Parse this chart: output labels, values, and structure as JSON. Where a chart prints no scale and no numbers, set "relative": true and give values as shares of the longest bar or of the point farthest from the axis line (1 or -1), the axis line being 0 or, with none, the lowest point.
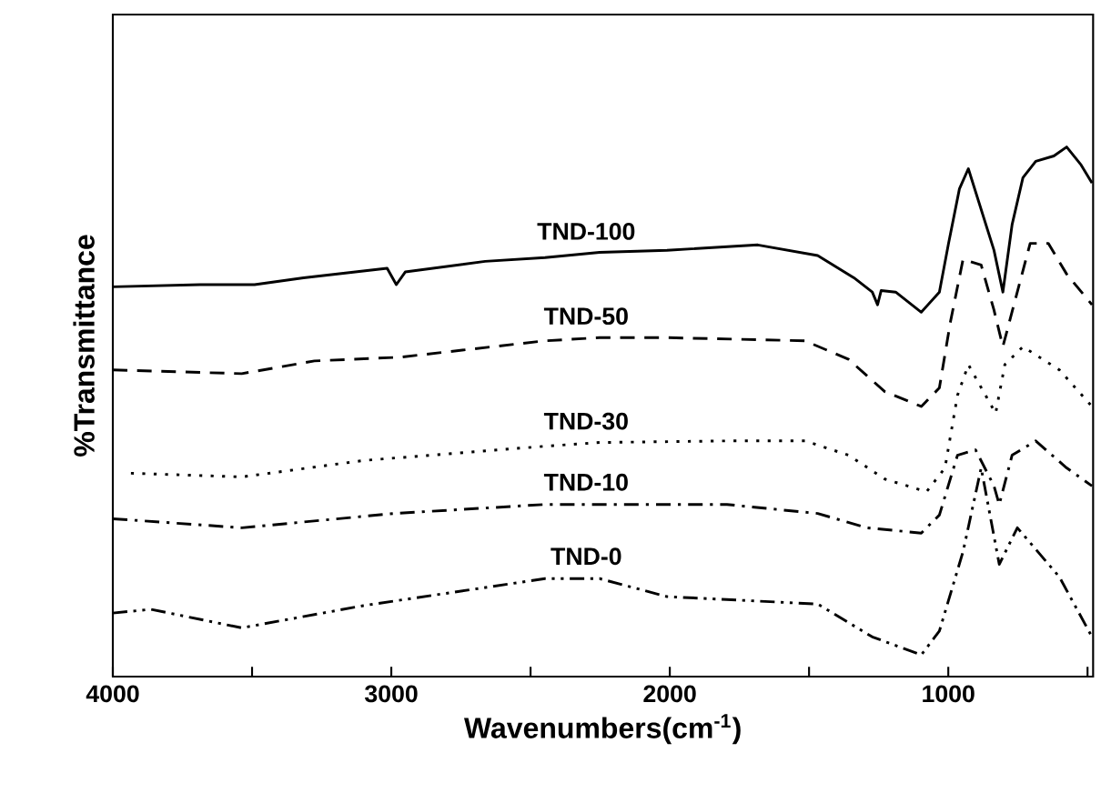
{
  "chart_data": {
    "type": "line",
    "relative": true,
    "xlabel": "Wavenumbers(cm$^{-1}$)",
    "ylabel": "%Transmittance",
    "xlim": [
      4000,
      480
    ],
    "xticks": [
      4000,
      {
        "value": 3500,
        "label": null
      },
      3000,
      {
        "value": 2500,
        "label": null
      },
      2000,
      {
        "value": 1500,
        "label": null
      },
      1000,
      {
        "value": 500,
        "label": null
      }
    ],
    "tick_labels": "x",
    "grid": false,
    "legend": false,
    "marker": "none",
    "series": [
      {
        "name": "TND-100",
        "color": "#000000",
        "line_style": "solid",
        "x": [
          4000,
          3687,
          3491,
          3315,
          3015,
          2982,
          2950,
          2663,
          2448,
          2252,
          2010,
          1684,
          1469,
          1339,
          1273,
          1254,
          1241,
          1189,
          1097,
          1032,
          999,
          960,
          928,
          836,
          804,
          771,
          732,
          686,
          621,
          575,
          523,
          484
        ],
        "values": [
          0.736,
          0.74,
          0.74,
          0.753,
          0.771,
          0.74,
          0.764,
          0.784,
          0.791,
          0.801,
          0.805,
          0.815,
          0.795,
          0.753,
          0.726,
          0.702,
          0.729,
          0.726,
          0.688,
          0.726,
          0.818,
          0.921,
          0.959,
          0.805,
          0.726,
          0.853,
          0.942,
          0.973,
          0.983,
          1.0,
          0.966,
          0.932
        ]
      },
      {
        "name": "TND-50",
        "color": "#000000",
        "line_style": "dashed",
        "x": [
          4000,
          3537,
          3276,
          2969,
          2448,
          2252,
          2010,
          1515,
          1358,
          1228,
          1097,
          1032,
          993,
          947,
          882,
          836,
          804,
          706,
          641,
          575,
          484
        ],
        "values": [
          0.579,
          0.572,
          0.596,
          0.603,
          0.634,
          0.64,
          0.64,
          0.634,
          0.599,
          0.538,
          0.51,
          0.545,
          0.668,
          0.788,
          0.777,
          0.692,
          0.623,
          0.818,
          0.818,
          0.76,
          0.702
        ]
      },
      {
        "name": "TND-30",
        "color": "#000000",
        "line_style": "dotted",
        "x": [
          3935,
          3537,
          3100,
          2448,
          2252,
          1795,
          1515,
          1358,
          1228,
          1078,
          1012,
          967,
          928,
          862,
          830,
          797,
          732,
          601,
          484
        ],
        "values": [
          0.384,
          0.377,
          0.408,
          0.435,
          0.442,
          0.445,
          0.445,
          0.418,
          0.373,
          0.349,
          0.394,
          0.531,
          0.589,
          0.527,
          0.497,
          0.589,
          0.623,
          0.579,
          0.51
        ]
      },
      {
        "name": "TND-10",
        "color": "#000000",
        "line_style": "dashdotted",
        "x": [
          4000,
          3537,
          2989,
          2448,
          1795,
          1469,
          1293,
          1097,
          1032,
          967,
          902,
          836,
          817,
          771,
          686,
          575,
          484
        ],
        "values": [
          0.298,
          0.281,
          0.308,
          0.325,
          0.325,
          0.308,
          0.281,
          0.271,
          0.305,
          0.418,
          0.428,
          0.36,
          0.325,
          0.418,
          0.445,
          0.394,
          0.36
        ]
      },
      {
        "name": "TND-0",
        "color": "#000000",
        "line_style": "dashdotdotted",
        "x": [
          4000,
          3863,
          3537,
          3100,
          2448,
          2252,
          2010,
          1469,
          1273,
          1097,
          1032,
          947,
          882,
          817,
          752,
          601,
          484
        ],
        "values": [
          0.12,
          0.127,
          0.092,
          0.134,
          0.185,
          0.185,
          0.151,
          0.137,
          0.075,
          0.041,
          0.086,
          0.236,
          0.394,
          0.212,
          0.281,
          0.188,
          0.075
        ]
      }
    ]
  }
}
